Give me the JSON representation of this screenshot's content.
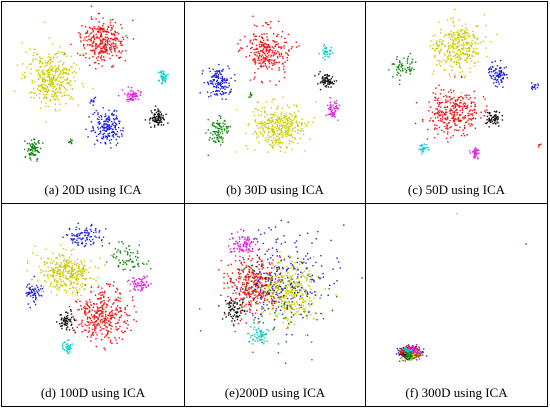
{
  "colors": {
    "red": "#ee1111",
    "yellow": "#cccc00",
    "blue": "#2222dd",
    "green": "#118811",
    "black": "#111111",
    "magenta": "#dd22dd",
    "cyan": "#11cccc"
  },
  "chart_data": [
    {
      "type": "scatter",
      "caption": "(a) 20D using ICA",
      "clusters": [
        {
          "color": "red",
          "center": [
            0.55,
            0.22
          ],
          "spread": [
            0.11,
            0.11
          ],
          "count": 300
        },
        {
          "color": "yellow",
          "center": [
            0.27,
            0.42
          ],
          "spread": [
            0.13,
            0.14
          ],
          "count": 360
        },
        {
          "color": "blue",
          "center": [
            0.57,
            0.7
          ],
          "spread": [
            0.07,
            0.09
          ],
          "count": 180
        },
        {
          "color": "green",
          "center": [
            0.17,
            0.82
          ],
          "spread": [
            0.04,
            0.06
          ],
          "count": 80
        },
        {
          "color": "green",
          "center": [
            0.37,
            0.78
          ],
          "spread": [
            0.01,
            0.01
          ],
          "count": 10
        },
        {
          "color": "black",
          "center": [
            0.85,
            0.65
          ],
          "spread": [
            0.04,
            0.04
          ],
          "count": 90
        },
        {
          "color": "magenta",
          "center": [
            0.72,
            0.52
          ],
          "spread": [
            0.04,
            0.03
          ],
          "count": 60
        },
        {
          "color": "cyan",
          "center": [
            0.88,
            0.42
          ],
          "spread": [
            0.02,
            0.03
          ],
          "count": 40
        },
        {
          "color": "blue",
          "center": [
            0.5,
            0.55
          ],
          "spread": [
            0.02,
            0.02
          ],
          "count": 10
        }
      ]
    },
    {
      "type": "scatter",
      "caption": "(b) 30D using ICA",
      "clusters": [
        {
          "color": "red",
          "center": [
            0.45,
            0.27
          ],
          "spread": [
            0.11,
            0.12
          ],
          "count": 260
        },
        {
          "color": "blue",
          "center": [
            0.18,
            0.45
          ],
          "spread": [
            0.06,
            0.08
          ],
          "count": 140
        },
        {
          "color": "yellow",
          "center": [
            0.52,
            0.7
          ],
          "spread": [
            0.13,
            0.12
          ],
          "count": 340
        },
        {
          "color": "cyan",
          "center": [
            0.78,
            0.28
          ],
          "spread": [
            0.03,
            0.03
          ],
          "count": 35
        },
        {
          "color": "black",
          "center": [
            0.78,
            0.44
          ],
          "spread": [
            0.04,
            0.04
          ],
          "count": 70
        },
        {
          "color": "magenta",
          "center": [
            0.82,
            0.6
          ],
          "spread": [
            0.03,
            0.04
          ],
          "count": 50
        },
        {
          "color": "green",
          "center": [
            0.18,
            0.72
          ],
          "spread": [
            0.05,
            0.07
          ],
          "count": 90
        },
        {
          "color": "green",
          "center": [
            0.36,
            0.52
          ],
          "spread": [
            0.01,
            0.01
          ],
          "count": 10
        }
      ]
    },
    {
      "type": "scatter",
      "caption": "(c) 50D using ICA",
      "clusters": [
        {
          "color": "yellow",
          "center": [
            0.5,
            0.25
          ],
          "spread": [
            0.12,
            0.13
          ],
          "count": 320
        },
        {
          "color": "red",
          "center": [
            0.48,
            0.62
          ],
          "spread": [
            0.13,
            0.12
          ],
          "count": 300
        },
        {
          "color": "blue",
          "center": [
            0.73,
            0.4
          ],
          "spread": [
            0.05,
            0.05
          ],
          "count": 90
        },
        {
          "color": "blue",
          "center": [
            0.93,
            0.47
          ],
          "spread": [
            0.02,
            0.02
          ],
          "count": 15
        },
        {
          "color": "green",
          "center": [
            0.2,
            0.35
          ],
          "spread": [
            0.08,
            0.06
          ],
          "count": 60
        },
        {
          "color": "black",
          "center": [
            0.7,
            0.65
          ],
          "spread": [
            0.04,
            0.04
          ],
          "count": 60
        },
        {
          "color": "magenta",
          "center": [
            0.6,
            0.85
          ],
          "spread": [
            0.02,
            0.03
          ],
          "count": 40
        },
        {
          "color": "cyan",
          "center": [
            0.31,
            0.82
          ],
          "spread": [
            0.02,
            0.02
          ],
          "count": 30
        },
        {
          "color": "red",
          "center": [
            0.95,
            0.8
          ],
          "spread": [
            0.01,
            0.01
          ],
          "count": 5
        }
      ]
    },
    {
      "type": "scatter",
      "caption": "(d) 100D using ICA",
      "clusters": [
        {
          "color": "yellow",
          "center": [
            0.35,
            0.38
          ],
          "spread": [
            0.14,
            0.1
          ],
          "count": 340
        },
        {
          "color": "red",
          "center": [
            0.55,
            0.62
          ],
          "spread": [
            0.13,
            0.13
          ],
          "count": 340
        },
        {
          "color": "blue",
          "center": [
            0.45,
            0.18
          ],
          "spread": [
            0.1,
            0.05
          ],
          "count": 100
        },
        {
          "color": "blue",
          "center": [
            0.17,
            0.5
          ],
          "spread": [
            0.04,
            0.06
          ],
          "count": 60
        },
        {
          "color": "black",
          "center": [
            0.35,
            0.65
          ],
          "spread": [
            0.04,
            0.05
          ],
          "count": 60
        },
        {
          "color": "magenta",
          "center": [
            0.75,
            0.45
          ],
          "spread": [
            0.05,
            0.04
          ],
          "count": 60
        },
        {
          "color": "green",
          "center": [
            0.68,
            0.3
          ],
          "spread": [
            0.1,
            0.08
          ],
          "count": 70
        },
        {
          "color": "cyan",
          "center": [
            0.35,
            0.8
          ],
          "spread": [
            0.03,
            0.03
          ],
          "count": 40
        }
      ]
    },
    {
      "type": "scatter",
      "caption": "(e)200D using ICA",
      "clusters": [
        {
          "color": "red",
          "center": [
            0.38,
            0.45
          ],
          "spread": [
            0.14,
            0.14
          ],
          "count": 360
        },
        {
          "color": "yellow",
          "center": [
            0.58,
            0.48
          ],
          "spread": [
            0.13,
            0.14
          ],
          "count": 360
        },
        {
          "color": "blue",
          "center": [
            0.55,
            0.4
          ],
          "spread": [
            0.25,
            0.25
          ],
          "count": 220
        },
        {
          "color": "green",
          "center": [
            0.5,
            0.55
          ],
          "spread": [
            0.25,
            0.24
          ],
          "count": 120
        },
        {
          "color": "magenta",
          "center": [
            0.32,
            0.22
          ],
          "spread": [
            0.07,
            0.05
          ],
          "count": 80
        },
        {
          "color": "black",
          "center": [
            0.27,
            0.6
          ],
          "spread": [
            0.05,
            0.06
          ],
          "count": 60
        },
        {
          "color": "cyan",
          "center": [
            0.4,
            0.73
          ],
          "spread": [
            0.05,
            0.04
          ],
          "count": 50
        }
      ]
    },
    {
      "type": "scatter",
      "caption": "(f) 300D using ICA",
      "clusters": [
        {
          "color": "blue",
          "center": [
            0.24,
            0.83
          ],
          "spread": [
            0.05,
            0.03
          ],
          "count": 160
        },
        {
          "color": "red",
          "center": [
            0.24,
            0.83
          ],
          "spread": [
            0.045,
            0.028
          ],
          "count": 260
        },
        {
          "color": "black",
          "center": [
            0.23,
            0.84
          ],
          "spread": [
            0.03,
            0.02
          ],
          "count": 80
        },
        {
          "color": "magenta",
          "center": [
            0.26,
            0.82
          ],
          "spread": [
            0.03,
            0.02
          ],
          "count": 60
        },
        {
          "color": "yellow",
          "center": [
            0.25,
            0.85
          ],
          "spread": [
            0.03,
            0.02
          ],
          "count": 50
        },
        {
          "color": "cyan",
          "center": [
            0.22,
            0.82
          ],
          "spread": [
            0.02,
            0.02
          ],
          "count": 30
        },
        {
          "color": "green",
          "center": [
            0.23,
            0.85
          ],
          "spread": [
            0.03,
            0.02
          ],
          "count": 40
        },
        {
          "color": "yellow",
          "center": [
            0.5,
            0.05
          ],
          "spread": [
            0.0,
            0.0
          ],
          "count": 1
        },
        {
          "color": "blue",
          "center": [
            0.88,
            0.22
          ],
          "spread": [
            0.0,
            0.0
          ],
          "count": 1
        }
      ]
    }
  ]
}
